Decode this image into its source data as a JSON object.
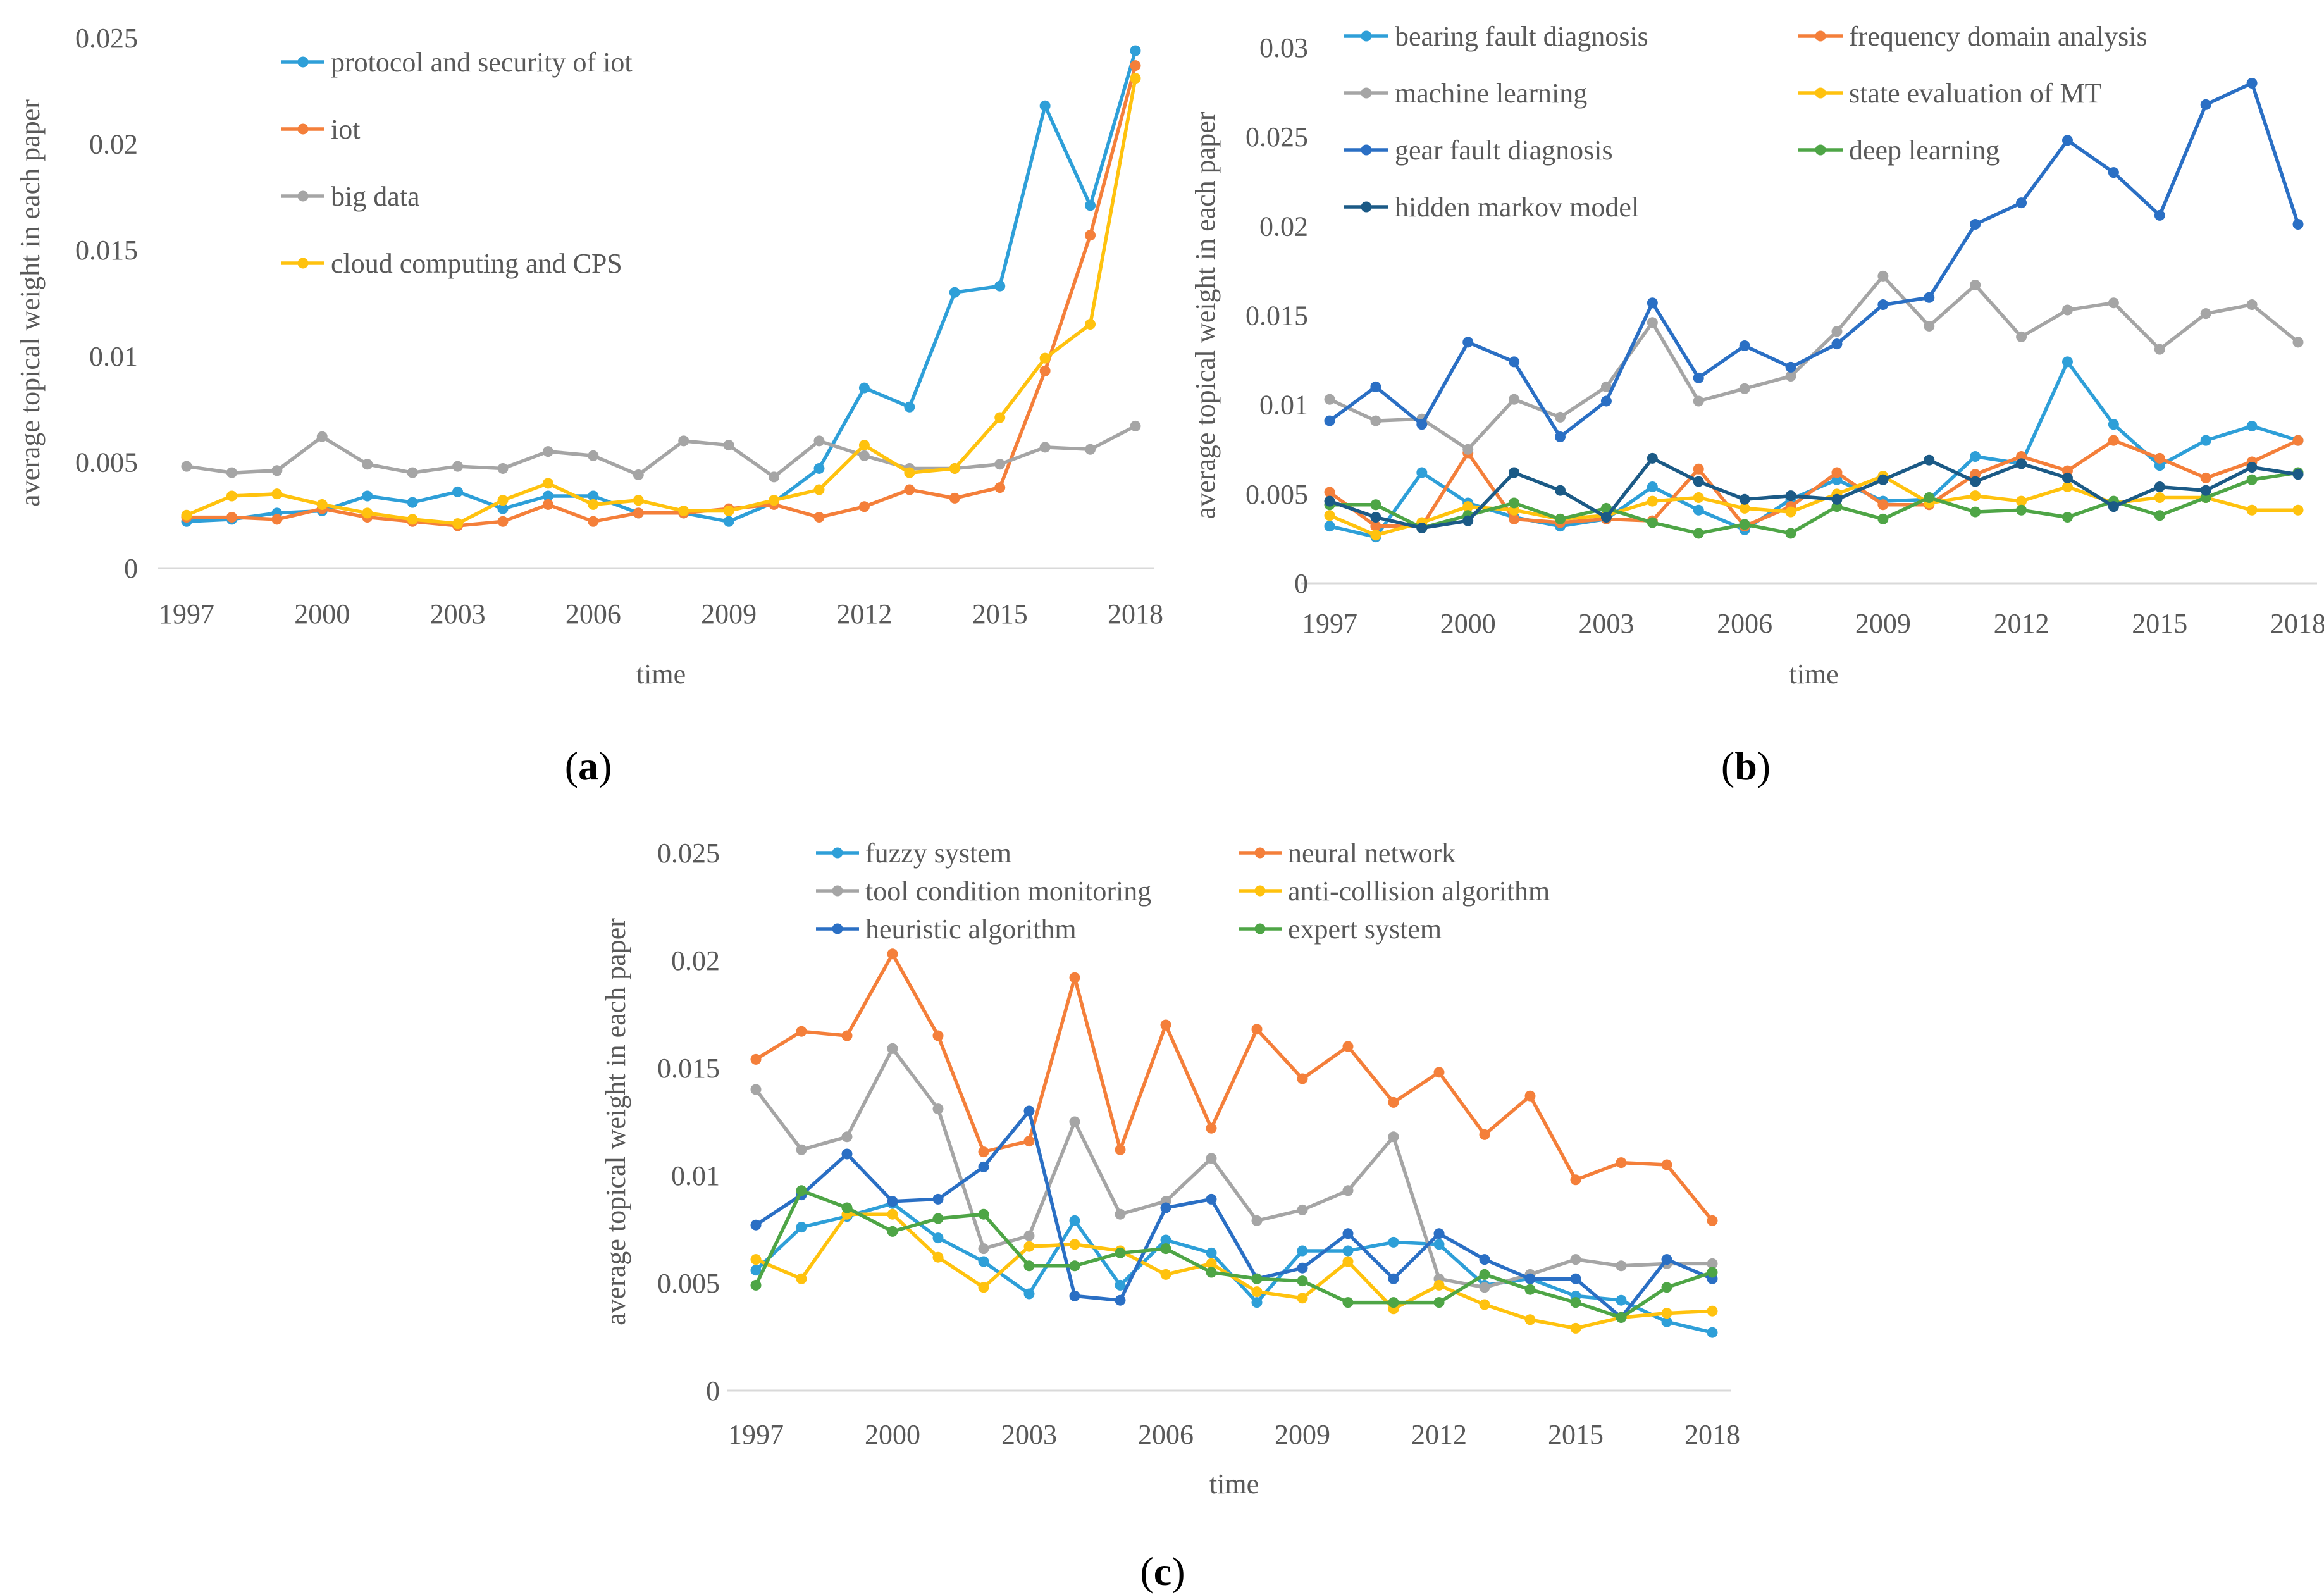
{
  "chart_data": [
    {
      "type": "line",
      "panel_label": {
        "open": "(",
        "letter": "a",
        "close": ")"
      },
      "xlabel": "time",
      "ylabel": "average topical weight in each paper",
      "ylim": [
        0,
        0.025
      ],
      "yticks": [
        "0",
        "0.005",
        "0.01",
        "0.015",
        "0.02",
        "0.025"
      ],
      "xlim": [
        1997,
        2018
      ],
      "xticks": [
        "1997",
        "2000",
        "2003",
        "2006",
        "2009",
        "2012",
        "2015",
        "2018"
      ],
      "grid": false,
      "legend_position": "top-center",
      "legend_columns": 1,
      "x": [
        1997,
        1998,
        1999,
        2000,
        2001,
        2002,
        2003,
        2004,
        2005,
        2006,
        2007,
        2008,
        2009,
        2010,
        2011,
        2012,
        2013,
        2014,
        2015,
        2016,
        2017,
        2018
      ],
      "series": [
        {
          "name": "protocol and security of iot",
          "color": "#2E9FD8",
          "values": [
            0.0022,
            0.0023,
            0.0026,
            0.0027,
            0.0034,
            0.0031,
            0.0036,
            0.0028,
            0.0034,
            0.0034,
            0.0026,
            0.0026,
            0.0022,
            0.0031,
            0.0047,
            0.0085,
            0.0076,
            0.013,
            0.0133,
            0.0218,
            0.0171,
            0.0244
          ]
        },
        {
          "name": "iot",
          "color": "#F47F3A",
          "values": [
            0.0024,
            0.0024,
            0.0023,
            0.0028,
            0.0024,
            0.0022,
            0.002,
            0.0022,
            0.003,
            0.0022,
            0.0026,
            0.0026,
            0.0028,
            0.003,
            0.0024,
            0.0029,
            0.0037,
            0.0033,
            0.0038,
            0.0093,
            0.0157,
            0.0237
          ]
        },
        {
          "name": "big data",
          "color": "#A5A5A5",
          "values": [
            0.0048,
            0.0045,
            0.0046,
            0.0062,
            0.0049,
            0.0045,
            0.0048,
            0.0047,
            0.0055,
            0.0053,
            0.0044,
            0.006,
            0.0058,
            0.0043,
            0.006,
            0.0053,
            0.0047,
            0.0047,
            0.0049,
            0.0057,
            0.0056,
            0.0067
          ]
        },
        {
          "name": "cloud computing and CPS",
          "color": "#FFC20E",
          "values": [
            0.0025,
            0.0034,
            0.0035,
            0.003,
            0.0026,
            0.0023,
            0.0021,
            0.0032,
            0.004,
            0.003,
            0.0032,
            0.0027,
            0.0027,
            0.0032,
            0.0037,
            0.0058,
            0.0045,
            0.0047,
            0.0071,
            0.0099,
            0.0115,
            0.0231
          ]
        }
      ]
    },
    {
      "type": "line",
      "panel_label": {
        "open": "(",
        "letter": "b",
        "close": ")"
      },
      "xlabel": "time",
      "ylabel": "average topical weight in each paper",
      "ylim": [
        0,
        0.03
      ],
      "yticks": [
        "0",
        "0.005",
        "0.01",
        "0.015",
        "0.02",
        "0.025",
        "0.03"
      ],
      "xlim": [
        1997,
        2018
      ],
      "xticks": [
        "1997",
        "2000",
        "2003",
        "2006",
        "2009",
        "2012",
        "2015",
        "2018"
      ],
      "grid": false,
      "legend_position": "top",
      "legend_columns": 2,
      "x": [
        1997,
        1998,
        1999,
        2000,
        2001,
        2002,
        2003,
        2004,
        2005,
        2006,
        2007,
        2008,
        2009,
        2010,
        2011,
        2012,
        2013,
        2014,
        2015,
        2016,
        2017,
        2018
      ],
      "series": [
        {
          "name": "bearing fault diagnosis",
          "color": "#2E9FD8",
          "values": [
            0.0032,
            0.0026,
            0.0062,
            0.0045,
            0.0037,
            0.0032,
            0.0036,
            0.0054,
            0.0041,
            0.003,
            0.0047,
            0.0058,
            0.0046,
            0.0047,
            0.0071,
            0.0067,
            0.0124,
            0.0089,
            0.0066,
            0.008,
            0.0088,
            0.008
          ]
        },
        {
          "name": "frequency domain analysis",
          "color": "#F47F3A",
          "values": [
            0.0051,
            0.0032,
            0.0032,
            0.0073,
            0.0036,
            0.0034,
            0.0036,
            0.0035,
            0.0064,
            0.0032,
            0.0043,
            0.0062,
            0.0044,
            0.0044,
            0.0061,
            0.0071,
            0.0063,
            0.008,
            0.007,
            0.0059,
            0.0068,
            0.008
          ]
        },
        {
          "name": "machine learning",
          "color": "#A5A5A5",
          "values": [
            0.0103,
            0.0091,
            0.0092,
            0.0075,
            0.0103,
            0.0093,
            0.011,
            0.0146,
            0.0102,
            0.0109,
            0.0116,
            0.0141,
            0.0172,
            0.0144,
            0.0167,
            0.0138,
            0.0153,
            0.0157,
            0.0131,
            0.0151,
            0.0156,
            0.0135
          ]
        },
        {
          "name": "state evaluation of MT",
          "color": "#FFC20E",
          "values": [
            0.0038,
            0.0027,
            0.0034,
            0.0043,
            0.0041,
            0.0036,
            0.0038,
            0.0046,
            0.0048,
            0.0042,
            0.004,
            0.005,
            0.006,
            0.0045,
            0.0049,
            0.0046,
            0.0054,
            0.0045,
            0.0048,
            0.0048,
            0.0041,
            0.0041
          ]
        },
        {
          "name": "gear fault diagnosis",
          "color": "#2A6FC4",
          "values": [
            0.0091,
            0.011,
            0.0089,
            0.0135,
            0.0124,
            0.0082,
            0.0102,
            0.0157,
            0.0115,
            0.0133,
            0.0121,
            0.0134,
            0.0156,
            0.016,
            0.0201,
            0.0213,
            0.0248,
            0.023,
            0.0206,
            0.0268,
            0.028,
            0.0201
          ]
        },
        {
          "name": "deep learning",
          "color": "#4EA546",
          "values": [
            0.0044,
            0.0044,
            0.0031,
            0.0038,
            0.0045,
            0.0036,
            0.0042,
            0.0034,
            0.0028,
            0.0033,
            0.0028,
            0.0043,
            0.0036,
            0.0048,
            0.004,
            0.0041,
            0.0037,
            0.0046,
            0.0038,
            0.0048,
            0.0058,
            0.0062
          ]
        },
        {
          "name": "hidden markov model",
          "color": "#1B5A86",
          "values": [
            0.0046,
            0.0037,
            0.0031,
            0.0035,
            0.0062,
            0.0052,
            0.0037,
            0.007,
            0.0057,
            0.0047,
            0.0049,
            0.0047,
            0.0058,
            0.0069,
            0.0057,
            0.0067,
            0.0059,
            0.0043,
            0.0054,
            0.0052,
            0.0065,
            0.0061
          ]
        }
      ]
    },
    {
      "type": "line",
      "panel_label": {
        "open": "(",
        "letter": "c",
        "close": ")"
      },
      "xlabel": "time",
      "ylabel": "average topical weight in each paper",
      "ylim": [
        0,
        0.025
      ],
      "yticks": [
        "0",
        "0.005",
        "0.01",
        "0.015",
        "0.02",
        "0.025"
      ],
      "xlim": [
        1997,
        2018
      ],
      "xticks": [
        "1997",
        "2000",
        "2003",
        "2006",
        "2009",
        "2012",
        "2015",
        "2018"
      ],
      "grid": false,
      "legend_position": "top",
      "legend_columns": 2,
      "x": [
        1997,
        1998,
        1999,
        2000,
        2001,
        2002,
        2003,
        2004,
        2005,
        2006,
        2007,
        2008,
        2009,
        2010,
        2011,
        2012,
        2013,
        2014,
        2015,
        2016,
        2017,
        2018
      ],
      "series": [
        {
          "name": "fuzzy system",
          "color": "#2E9FD8",
          "values": [
            0.0056,
            0.0076,
            0.0081,
            0.0087,
            0.0071,
            0.006,
            0.0045,
            0.0079,
            0.0049,
            0.007,
            0.0064,
            0.0041,
            0.0065,
            0.0065,
            0.0069,
            0.0068,
            0.0049,
            0.0052,
            0.0044,
            0.0042,
            0.0032,
            0.0027
          ]
        },
        {
          "name": "neural network",
          "color": "#F47F3A",
          "values": [
            0.0154,
            0.0167,
            0.0165,
            0.0203,
            0.0165,
            0.0111,
            0.0116,
            0.0192,
            0.0112,
            0.017,
            0.0122,
            0.0168,
            0.0145,
            0.016,
            0.0134,
            0.0148,
            0.0119,
            0.0137,
            0.0098,
            0.0106,
            0.0105,
            0.0079
          ]
        },
        {
          "name": "tool condition monitoring",
          "color": "#A5A5A5",
          "values": [
            0.014,
            0.0112,
            0.0118,
            0.0159,
            0.0131,
            0.0066,
            0.0072,
            0.0125,
            0.0082,
            0.0088,
            0.0108,
            0.0079,
            0.0084,
            0.0093,
            0.0118,
            0.0052,
            0.0048,
            0.0054,
            0.0061,
            0.0058,
            0.0059,
            0.0059
          ]
        },
        {
          "name": "anti-collision algorithm",
          "color": "#FFC20E",
          "values": [
            0.0061,
            0.0052,
            0.0082,
            0.0082,
            0.0062,
            0.0048,
            0.0067,
            0.0068,
            0.0065,
            0.0054,
            0.0059,
            0.0046,
            0.0043,
            0.006,
            0.0038,
            0.0049,
            0.004,
            0.0033,
            0.0029,
            0.0034,
            0.0036,
            0.0037
          ]
        },
        {
          "name": "heuristic algorithm",
          "color": "#2A6FC4",
          "values": [
            0.0077,
            0.0091,
            0.011,
            0.0088,
            0.0089,
            0.0104,
            0.013,
            0.0044,
            0.0042,
            0.0085,
            0.0089,
            0.0052,
            0.0057,
            0.0073,
            0.0052,
            0.0073,
            0.0061,
            0.0052,
            0.0052,
            0.0034,
            0.0061,
            0.0052
          ]
        },
        {
          "name": "expert system",
          "color": "#4EA546",
          "values": [
            0.0049,
            0.0093,
            0.0085,
            0.0074,
            0.008,
            0.0082,
            0.0058,
            0.0058,
            0.0064,
            0.0066,
            0.0055,
            0.0052,
            0.0051,
            0.0041,
            0.0041,
            0.0041,
            0.0054,
            0.0047,
            0.0041,
            0.0034,
            0.0048,
            0.0055
          ]
        }
      ]
    }
  ]
}
